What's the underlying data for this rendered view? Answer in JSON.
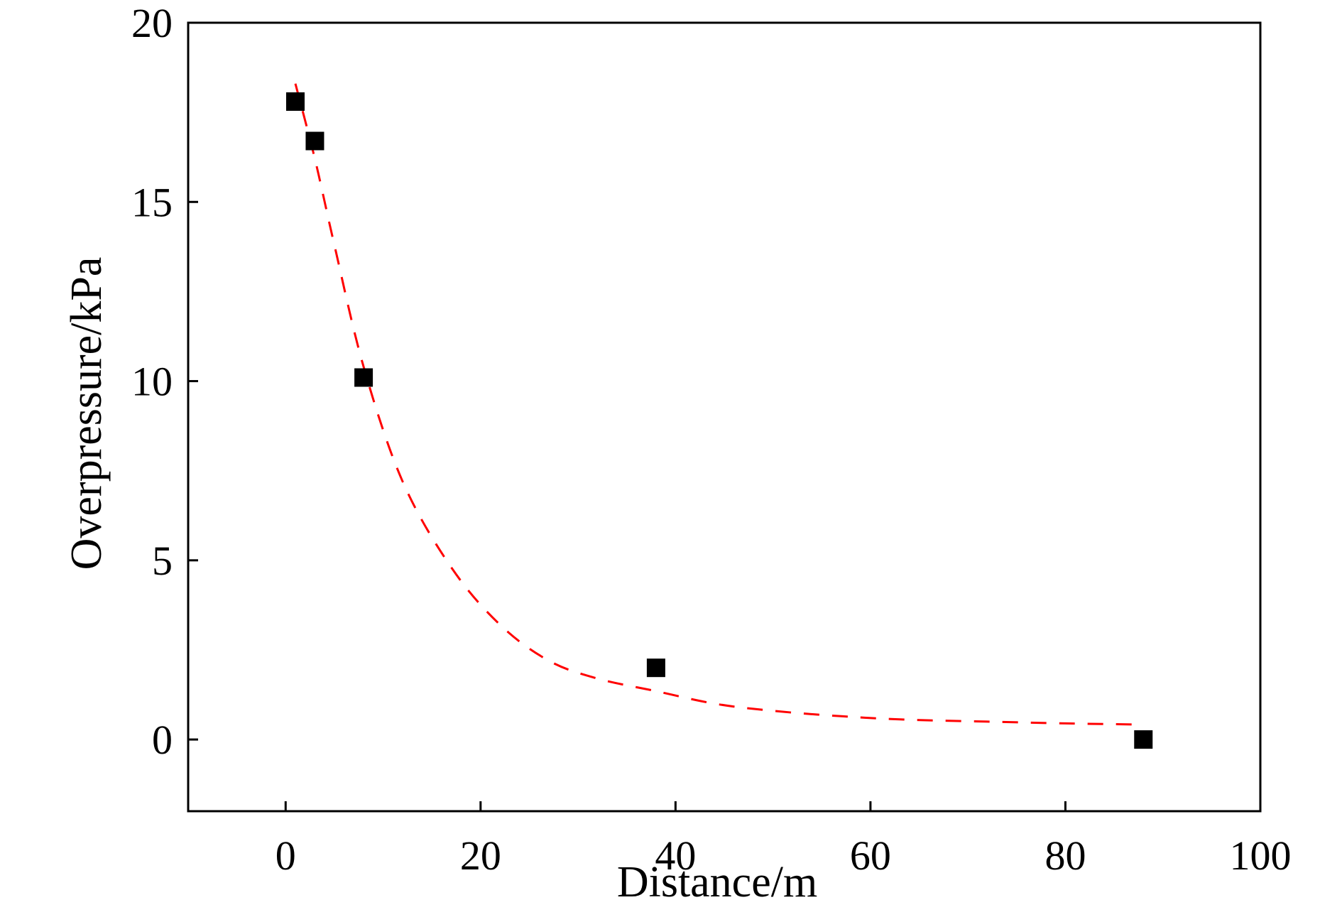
{
  "chart_data": {
    "type": "scatter",
    "title": "",
    "xlabel": "Distance/m",
    "ylabel": "Overpressure/kPa",
    "xlim": [
      -10,
      100
    ],
    "ylim": [
      -2,
      20
    ],
    "xticks": [
      0,
      20,
      40,
      60,
      80,
      100
    ],
    "yticks": [
      0,
      5,
      10,
      15,
      20
    ],
    "xtick_labels": [
      "0",
      "20",
      "40",
      "60",
      "80",
      "100"
    ],
    "ytick_labels": [
      "0",
      "5",
      "10",
      "15",
      "20"
    ],
    "grid": false,
    "legend": "none",
    "series": [
      {
        "type": "scatter",
        "marker": "square",
        "color": "#000000",
        "x": [
          1,
          3,
          8,
          38,
          88
        ],
        "y": [
          17.8,
          16.7,
          10.1,
          2.0,
          0.0
        ]
      },
      {
        "type": "line",
        "style": "dashed",
        "color": "#ff0000",
        "x": [
          1,
          3,
          5,
          8,
          12,
          17,
          22,
          27,
          32,
          38,
          44,
          50,
          57,
          64,
          72,
          80,
          87
        ],
        "y": [
          18.3,
          16.2,
          13.8,
          10.4,
          7.2,
          4.8,
          3.2,
          2.2,
          1.7,
          1.35,
          1.0,
          0.8,
          0.65,
          0.55,
          0.5,
          0.45,
          0.42
        ]
      }
    ]
  }
}
